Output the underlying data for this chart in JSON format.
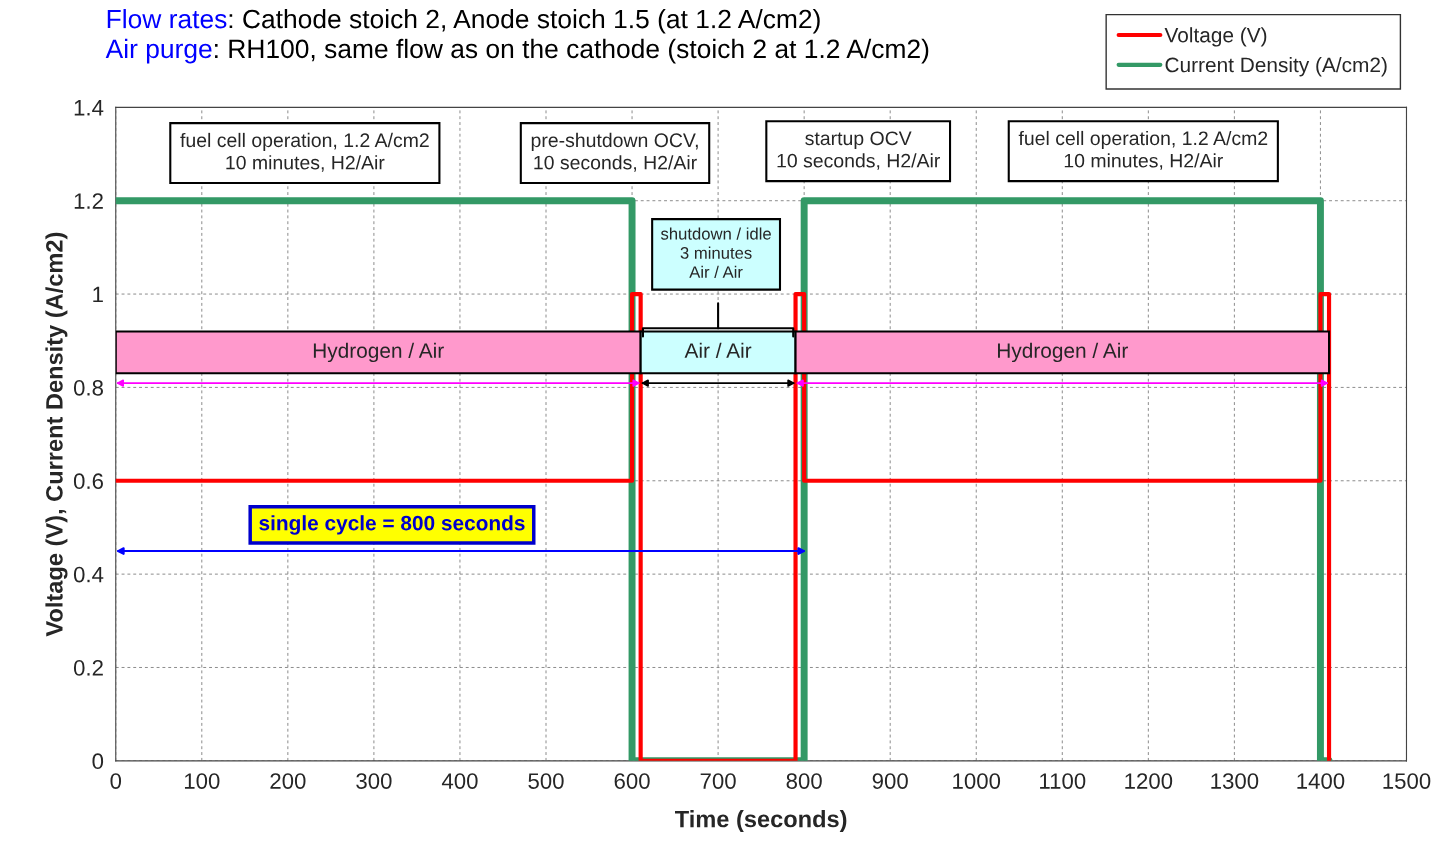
{
  "chart_data": {
    "type": "line",
    "title": "Flow rates: Cathode stoich 2, Anode stoich 1.5 (at 1.2 A/cm2)",
    "subtitle": "Air purge: RH100, same flow as on the cathode (stoich 2 at 1.2 A/cm2)",
    "xlabel": "Time (seconds)",
    "ylabel": "Voltage (V), Current Density (A/cm2)",
    "series": [
      {
        "name": "Voltage (V)",
        "color": "#ff0000",
        "x": [
          0,
          600,
          600,
          610,
          610,
          790,
          790,
          800,
          800,
          1400,
          1400,
          1410,
          1410
        ],
        "values": [
          0.6,
          0.6,
          1,
          1,
          0,
          0,
          1,
          1,
          0.6,
          0.6,
          1,
          1,
          0
        ]
      },
      {
        "name": "Current Density (A/cm2)",
        "color": "#339966",
        "x": [
          0,
          600,
          600,
          800,
          800,
          1400,
          1400,
          1410
        ],
        "values": [
          1.2,
          1.2,
          0,
          0,
          1.2,
          1.2,
          0,
          0
        ]
      }
    ],
    "xlim": [
      0,
      1500
    ],
    "xticks": [
      0,
      100,
      200,
      300,
      400,
      500,
      600,
      700,
      800,
      900,
      1000,
      1100,
      1200,
      1300,
      1400,
      1500
    ],
    "ylim": [
      0,
      1.4
    ],
    "yticks": [
      0,
      0.2,
      0.4,
      0.6,
      0.8,
      1,
      1.2,
      1.4
    ],
    "bands": [
      {
        "axis": "x",
        "from": 0,
        "to": 610,
        "label": "Hydrogen / Air",
        "color": "#ff99cc"
      },
      {
        "axis": "x",
        "from": 610,
        "to": 790,
        "label": "Air / Air",
        "color": "#ccffff"
      },
      {
        "axis": "x",
        "from": 790,
        "to": 1410,
        "label": "Hydrogen / Air",
        "color": "#ff99cc"
      }
    ],
    "annotations": [
      "fuel cell operation, 1.2 A/cm2\n10 minutes, H2/Air",
      "pre-shutdown OCV,\n10 seconds, H2/Air",
      "startup OCV\n10 seconds, H2/Air",
      "fuel cell operation, 1.2 A/cm2\n10 minutes, H2/Air",
      "shutdown / idle\n3 minutes\nAir / Air",
      "single cycle = 800 seconds"
    ],
    "grid": true,
    "legend": "top right",
    "line_style": "solid",
    "marker": "none"
  }
}
